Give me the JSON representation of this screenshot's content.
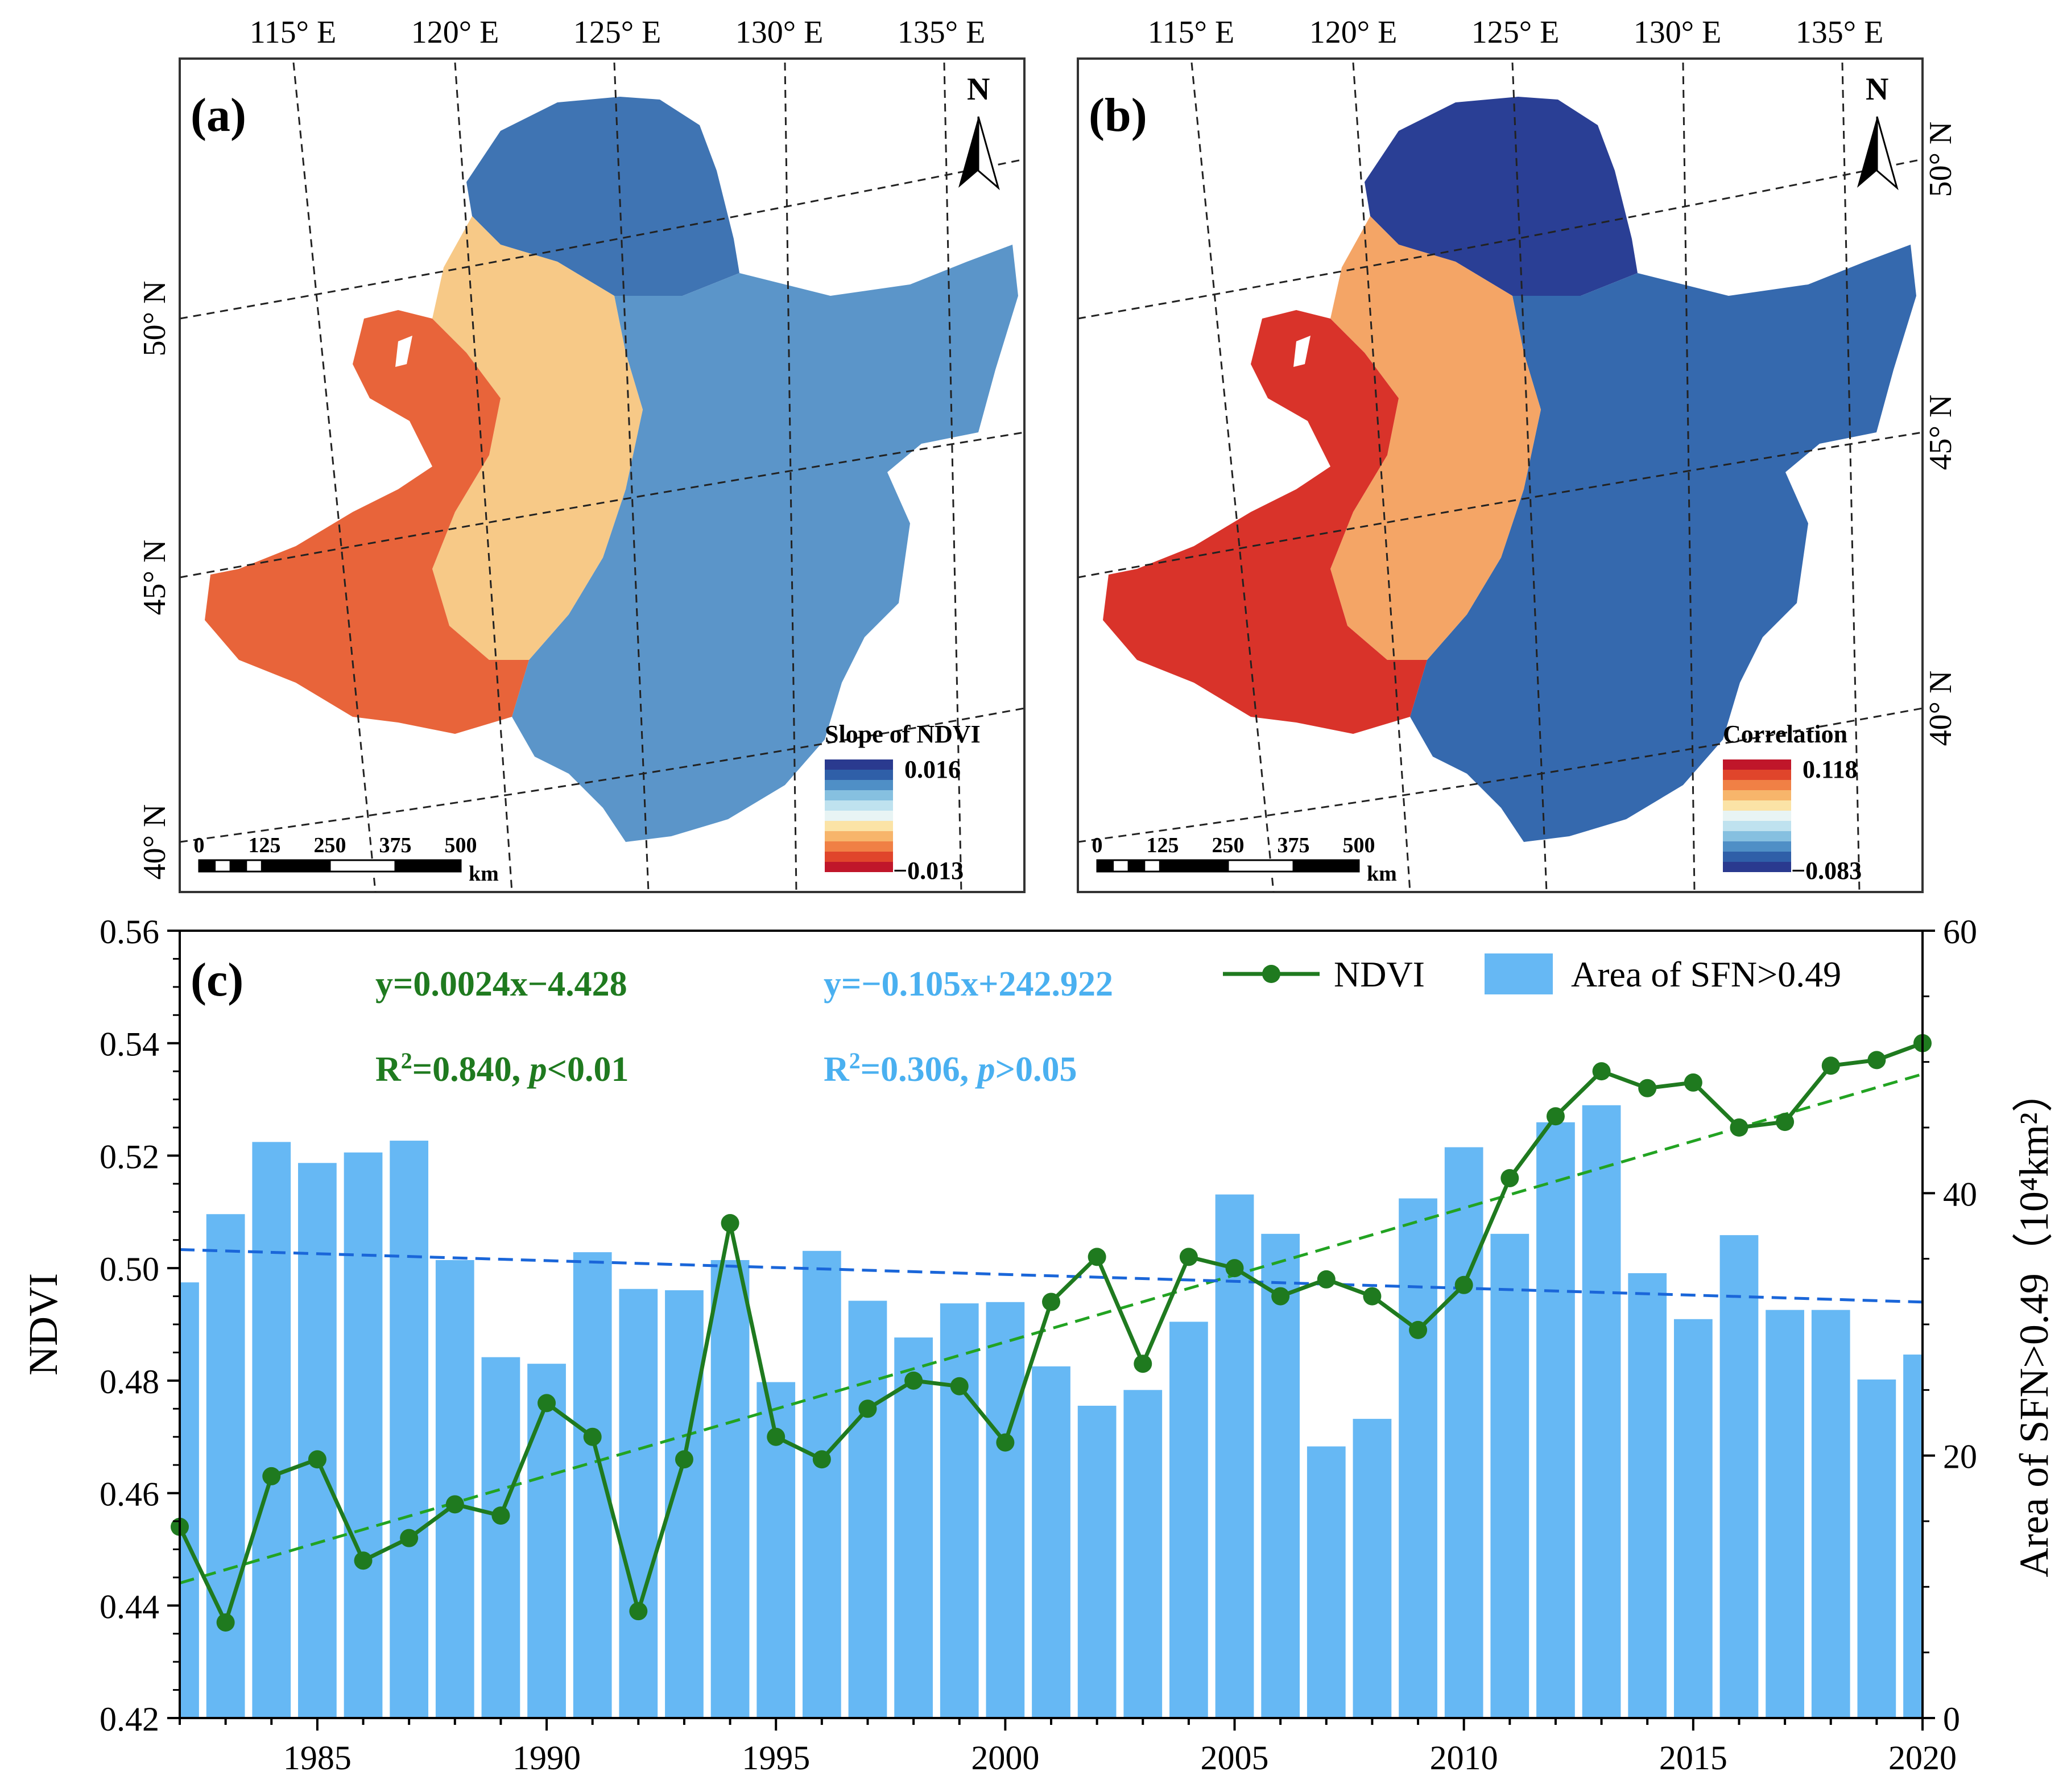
{
  "maps": {
    "a": {
      "label": "(a)",
      "north": "N",
      "colorbar_title": "Slope of NDVI",
      "colorbar_max": "0.016",
      "colorbar_min": "−0.013",
      "colorbar_colors": [
        "#2a3a8f",
        "#2f5fa8",
        "#4f8fc6",
        "#86c0e0",
        "#bfe2ef",
        "#e8f4f4",
        "#fbe3a6",
        "#f7b56b",
        "#f08045",
        "#e0452b",
        "#c0162a"
      ],
      "scale_ticks": [
        "0",
        "125",
        "250",
        "375",
        "500"
      ],
      "scale_unit": "km",
      "lon_labels": [
        "115° E",
        "120° E",
        "125° E",
        "130° E",
        "135° E"
      ],
      "lat_labels": [
        "50° N",
        "45° N",
        "40° N"
      ],
      "colors": {
        "west": "#e8643a",
        "mid": "#f7c987",
        "east": "#5b95c9",
        "north": "#3f74b3"
      }
    },
    "b": {
      "label": "(b)",
      "north": "N",
      "colorbar_title": "Correlation",
      "colorbar_max": "0.118",
      "colorbar_min": "−0.083",
      "colorbar_colors": [
        "#c0162a",
        "#e0452b",
        "#f08045",
        "#f7b56b",
        "#fbe3a6",
        "#e8f4f4",
        "#bfe2ef",
        "#86c0e0",
        "#4f8fc6",
        "#2f5fa8",
        "#2a3a8f"
      ],
      "scale_ticks": [
        "0",
        "125",
        "250",
        "375",
        "500"
      ],
      "scale_unit": "km",
      "lon_labels": [
        "115° E",
        "120° E",
        "125° E",
        "130° E",
        "135° E"
      ],
      "lat_labels": [
        "50° N",
        "45° N",
        "40° N"
      ],
      "colors": {
        "west": "#d9332a",
        "mid": "#f4a566",
        "east": "#3569ae",
        "north": "#2a3f95"
      }
    }
  },
  "chart_data": {
    "type": "bar",
    "panel_label": "(c)",
    "years": [
      1982,
      1983,
      1984,
      1985,
      1986,
      1987,
      1988,
      1989,
      1990,
      1991,
      1992,
      1993,
      1994,
      1995,
      1996,
      1997,
      1998,
      1999,
      2000,
      2001,
      2002,
      2003,
      2004,
      2005,
      2006,
      2007,
      2008,
      2009,
      2010,
      2011,
      2012,
      2013,
      2014,
      2015,
      2016,
      2017,
      2018,
      2019,
      2020
    ],
    "xlim": [
      1982,
      2020
    ],
    "x_ticks": [
      1985,
      1990,
      1995,
      2000,
      2005,
      2010,
      2015,
      2020
    ],
    "ylabel_left": "NDVI",
    "ylim_left": [
      0.42,
      0.56
    ],
    "y_ticks_left": [
      "0.42",
      "0.44",
      "0.46",
      "0.48",
      "0.50",
      "0.52",
      "0.54",
      "0.56"
    ],
    "ylabel_right": "Area of  SFN>0.49（10⁴km²）",
    "ylim_right": [
      0,
      60
    ],
    "y_ticks_right": [
      "0",
      "20",
      "40",
      "60"
    ],
    "series": [
      {
        "name": "NDVI",
        "axis": "left",
        "kind": "line",
        "color": "#1f7a1f",
        "values": [
          0.454,
          0.437,
          0.463,
          0.466,
          0.448,
          0.452,
          0.458,
          0.456,
          0.476,
          0.47,
          0.439,
          0.466,
          0.508,
          0.47,
          0.466,
          0.475,
          0.48,
          0.479,
          0.469,
          0.494,
          0.502,
          0.483,
          0.502,
          0.5,
          0.495,
          0.498,
          0.495,
          0.489,
          0.497,
          0.516,
          0.527,
          0.535,
          0.532,
          0.533,
          0.525,
          0.526,
          0.536,
          0.537,
          0.54
        ]
      },
      {
        "name": "Area of SFN>0.49",
        "axis": "right",
        "kind": "bar",
        "color": "#66b8f4",
        "values": [
          33.2,
          38.4,
          43.9,
          42.3,
          43.1,
          44.0,
          34.9,
          27.5,
          27.0,
          35.5,
          32.7,
          32.6,
          34.9,
          25.6,
          35.6,
          31.8,
          29.0,
          31.6,
          31.7,
          26.8,
          23.8,
          25.0,
          30.2,
          39.9,
          36.9,
          20.7,
          22.8,
          39.6,
          43.5,
          36.9,
          45.4,
          46.7,
          33.9,
          30.4,
          36.8,
          31.1,
          31.1,
          25.8,
          27.7
        ]
      }
    ],
    "trendlines": [
      {
        "name": "NDVI trend",
        "axis": "left",
        "color": "#22a322",
        "start": [
          1982,
          0.444
        ],
        "end": [
          2020,
          0.5345
        ],
        "equation": "y=0.0024x−4.428",
        "r2_prefix": "R",
        "r2_sup": "2",
        "r2_value": "=0.840, ",
        "p_italic": "p",
        "p_rest": "<0.01"
      },
      {
        "name": "Area trend",
        "axis": "right",
        "color": "#1a66d9",
        "start": [
          1982,
          35.7
        ],
        "end": [
          2020,
          31.7
        ],
        "equation": "y=−0.105x+242.922",
        "r2_prefix": "R",
        "r2_sup": "2",
        "r2_value": "=0.306, ",
        "p_italic": "p",
        "p_rest": ">0.05"
      }
    ],
    "legend": [
      {
        "label": "NDVI",
        "kind": "line",
        "color": "#1f7a1f"
      },
      {
        "label": "Area of SFN>0.49",
        "kind": "bar",
        "color": "#66b8f4"
      }
    ],
    "eq_colors": {
      "ndvi": "#1f7a1f",
      "area": "#4ab0f0"
    }
  }
}
